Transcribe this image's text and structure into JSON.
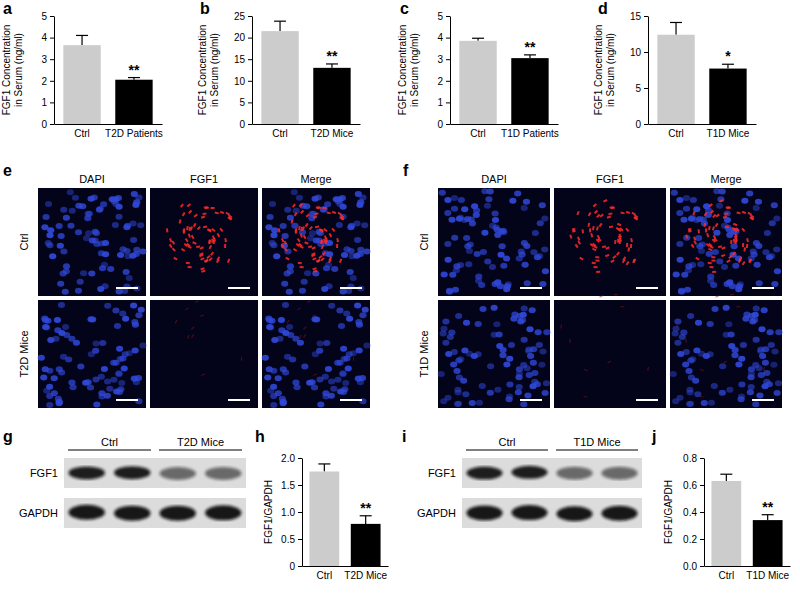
{
  "chart_data": [
    {
      "type": "bar",
      "title": "a",
      "y_label": [
        "FGF1 Concentration",
        "in Serum (ng/ml)"
      ],
      "categories": [
        "Ctrl",
        "T2D Patients"
      ],
      "values": [
        3.65,
        2.05
      ],
      "errors": [
        0.45,
        0.1
      ],
      "colors": [
        "#cccccc",
        "#000000"
      ],
      "ylim": [
        0,
        5
      ],
      "yticks": [
        0,
        1,
        2,
        3,
        4,
        5
      ],
      "annotation": "**"
    },
    {
      "type": "bar",
      "title": "b",
      "y_label": [
        "FGF1 Concentration",
        "in Serum (ng/ml)"
      ],
      "categories": [
        "Ctrl",
        "T2D Mice"
      ],
      "values": [
        21.5,
        13.0
      ],
      "errors": [
        2.3,
        0.9
      ],
      "colors": [
        "#cccccc",
        "#000000"
      ],
      "ylim": [
        0,
        25
      ],
      "yticks": [
        0,
        5,
        10,
        15,
        20,
        25
      ],
      "annotation": "**"
    },
    {
      "type": "bar",
      "title": "c",
      "y_label": [
        "FGF1 Concentration",
        "in Serum (ng/ml)"
      ],
      "categories": [
        "Ctrl",
        "T1D Patients"
      ],
      "values": [
        3.85,
        3.05
      ],
      "errors": [
        0.12,
        0.15
      ],
      "colors": [
        "#cccccc",
        "#000000"
      ],
      "ylim": [
        0,
        5
      ],
      "yticks": [
        0,
        1,
        2,
        3,
        4,
        5
      ],
      "annotation": "**"
    },
    {
      "type": "bar",
      "title": "d",
      "y_label": [
        "FGF1 Concentration",
        "in Serum (ng/ml)"
      ],
      "categories": [
        "Ctrl",
        "T1D Mice"
      ],
      "values": [
        12.4,
        7.7
      ],
      "errors": [
        1.7,
        0.6
      ],
      "colors": [
        "#cccccc",
        "#000000"
      ],
      "ylim": [
        0,
        15
      ],
      "yticks": [
        0,
        5,
        10,
        15
      ],
      "annotation": "*"
    },
    {
      "type": "bar",
      "title": "h",
      "y_label": [
        "FGF1/GAPDH"
      ],
      "categories": [
        "Ctrl",
        "T2D Mice"
      ],
      "values": [
        1.75,
        0.78
      ],
      "errors": [
        0.14,
        0.15
      ],
      "colors": [
        "#cccccc",
        "#000000"
      ],
      "ylim": [
        0,
        2
      ],
      "yticks": [
        0,
        0.5,
        {
          "value": 1,
          "label": "1.0"
        },
        1.5,
        {
          "value": 2,
          "label": "2.0"
        }
      ],
      "annotation": "**"
    },
    {
      "type": "bar",
      "title": "j",
      "y_label": [
        "FGF1/GAPDH"
      ],
      "categories": [
        "Ctrl",
        "T1D Mice"
      ],
      "values": [
        0.63,
        0.34
      ],
      "errors": [
        0.05,
        0.04
      ],
      "colors": [
        "#cccccc",
        "#000000"
      ],
      "ylim": [
        0,
        0.8
      ],
      "yticks": [
        {
          "value": 0,
          "label": "0.0"
        },
        0.2,
        0.4,
        0.6,
        0.8
      ],
      "annotation": "**"
    }
  ],
  "images": [
    {
      "title": "e",
      "columns": [
        "DAPI",
        "FGF1",
        "Merge"
      ],
      "rows": [
        "Ctrl",
        "T2D Mice"
      ]
    },
    {
      "title": "f",
      "columns": [
        "DAPI",
        "FGF1",
        "Merge"
      ],
      "rows": [
        "Ctrl",
        "T1D Mice"
      ]
    }
  ],
  "blots": [
    {
      "title": "g",
      "groups": [
        "Ctrl",
        "T2D Mice"
      ],
      "bands": [
        "FGF1",
        "GAPDH"
      ]
    },
    {
      "title": "i",
      "groups": [
        "Ctrl",
        "T1D Mice"
      ],
      "bands": [
        "FGF1",
        "GAPDH"
      ]
    }
  ]
}
